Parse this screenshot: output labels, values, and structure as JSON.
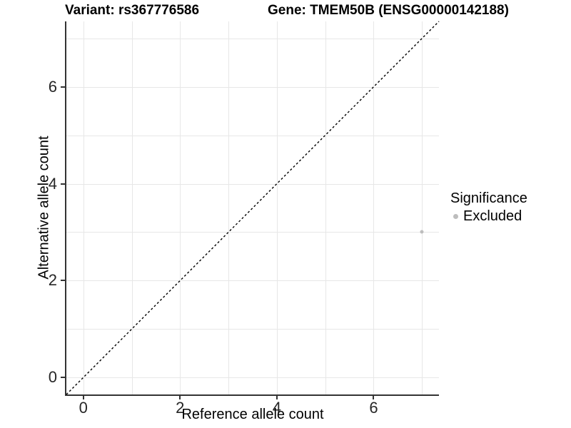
{
  "chart_data": {
    "type": "scatter",
    "title_left": "Variant: rs367776586",
    "title_right": "Gene: TMEM50B (ENSG00000142188)",
    "xlabel": "Reference allele count",
    "ylabel": "Alternative allele count",
    "xlim": [
      -0.35,
      7.35
    ],
    "ylim": [
      -0.35,
      7.35
    ],
    "x_ticks": [
      {
        "value": 0,
        "label": "0"
      },
      {
        "value": 2,
        "label": "2"
      },
      {
        "value": 4,
        "label": "4"
      },
      {
        "value": 6,
        "label": "6"
      }
    ],
    "y_ticks": [
      {
        "value": 0,
        "label": "0"
      },
      {
        "value": 2,
        "label": "2"
      },
      {
        "value": 4,
        "label": "4"
      },
      {
        "value": 6,
        "label": "6"
      }
    ],
    "grid": true,
    "grid_x": [
      0,
      1,
      2,
      3,
      4,
      5,
      6,
      7
    ],
    "grid_y": [
      0,
      1,
      2,
      3,
      4,
      5,
      6,
      7
    ],
    "identity_line": {
      "style": "dashed",
      "x1": -0.35,
      "y1": -0.35,
      "x2": 7.35,
      "y2": 7.35,
      "color": "#000000"
    },
    "series": [
      {
        "name": "Excluded",
        "color": "#bdbdbd",
        "points": [
          [
            7,
            3
          ]
        ]
      }
    ],
    "legend": {
      "position": "right",
      "title": "Significance",
      "entries": [
        {
          "label": "Excluded",
          "color": "#bdbdbd"
        }
      ]
    }
  },
  "colors": {
    "background": "#ffffff",
    "grid": "#e7e7e7",
    "axis": "#333333",
    "tick_label": "#262626",
    "text": "#000000",
    "excluded_point": "#bdbdbd",
    "identity_line": "#000000"
  }
}
